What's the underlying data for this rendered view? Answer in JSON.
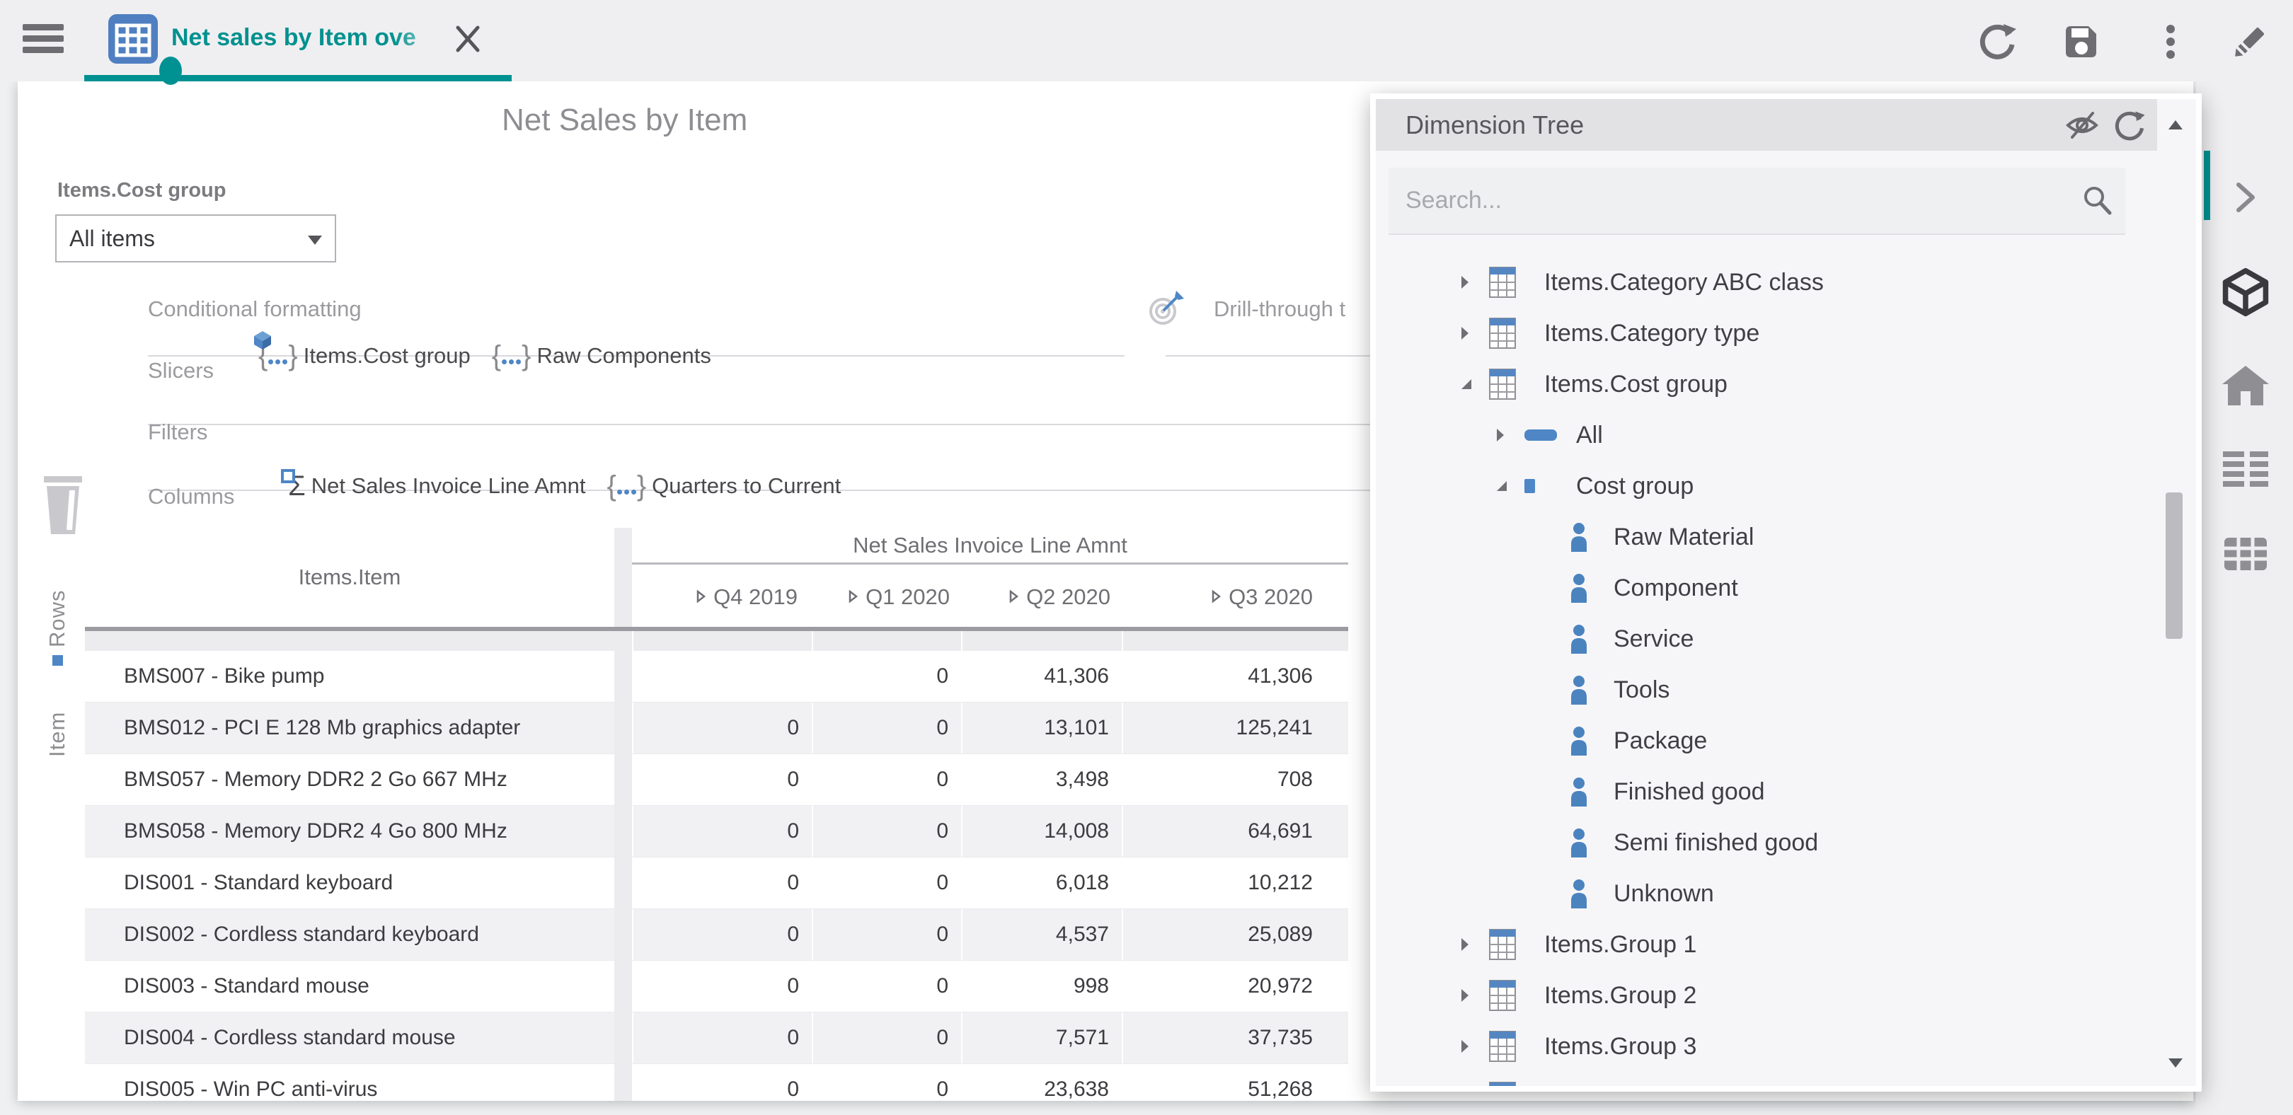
{
  "topbar": {
    "tab_title": "Net sales by Item ove"
  },
  "report": {
    "title": "Net Sales by Item",
    "slicer": {
      "label": "Items.Cost group",
      "value": "All items"
    },
    "sections": {
      "conditional_formatting": "Conditional formatting",
      "drill_through": "Drill-through t",
      "slicers": "Slicers",
      "filters": "Filters",
      "columns": "Columns",
      "rows": "Rows",
      "row_field": "Item",
      "slicer_chips": [
        "Items.Cost group",
        "Raw Components"
      ],
      "column_chips": [
        "Net Sales Invoice Line Amnt",
        "Quarters to Current"
      ]
    }
  },
  "pivot": {
    "row_dimension": "Items.Item",
    "measure": "Net Sales Invoice Line Amnt",
    "columns": [
      "Q4 2019",
      "Q1 2020",
      "Q2 2020",
      "Q3 2020"
    ],
    "rows": [
      {
        "item": "BMS007 - Bike pump",
        "values": [
          "",
          "0",
          "41,306",
          "41,306"
        ]
      },
      {
        "item": "BMS012 - PCI E 128 Mb graphics adapter",
        "values": [
          "0",
          "0",
          "13,101",
          "125,241"
        ]
      },
      {
        "item": "BMS057 - Memory DDR2 2 Go 667 MHz",
        "values": [
          "0",
          "0",
          "3,498",
          "708"
        ]
      },
      {
        "item": "BMS058 - Memory DDR2 4 Go 800 MHz",
        "values": [
          "0",
          "0",
          "14,008",
          "64,691"
        ]
      },
      {
        "item": "DIS001 - Standard keyboard",
        "values": [
          "0",
          "0",
          "6,018",
          "10,212"
        ]
      },
      {
        "item": "DIS002 - Cordless standard keyboard",
        "values": [
          "0",
          "0",
          "4,537",
          "25,089"
        ]
      },
      {
        "item": "DIS003 - Standard mouse",
        "values": [
          "0",
          "0",
          "998",
          "20,972"
        ]
      },
      {
        "item": "DIS004 - Cordless standard mouse",
        "values": [
          "0",
          "0",
          "7,571",
          "37,735"
        ]
      },
      {
        "item": "DIS005 - Win PC anti-virus",
        "values": [
          "0",
          "0",
          "23,638",
          "51,268"
        ]
      }
    ]
  },
  "dimension_tree": {
    "title": "Dimension Tree",
    "search_placeholder": "Search...",
    "nodes": [
      {
        "label": "Items.Category ABC class",
        "icon": "table",
        "expander": "collapsed",
        "level": 0
      },
      {
        "label": "Items.Category type",
        "icon": "table",
        "expander": "collapsed",
        "level": 0
      },
      {
        "label": "Items.Cost group",
        "icon": "table",
        "expander": "expanded",
        "level": 0
      },
      {
        "label": "All",
        "icon": "all-member",
        "expander": "collapsed",
        "level": 1
      },
      {
        "label": "Cost group",
        "icon": "level",
        "expander": "expanded",
        "level": 1
      },
      {
        "label": "Raw Material",
        "icon": "member",
        "expander": "none",
        "level": 2
      },
      {
        "label": "Component",
        "icon": "member",
        "expander": "none",
        "level": 2
      },
      {
        "label": "Service",
        "icon": "member",
        "expander": "none",
        "level": 2
      },
      {
        "label": "Tools",
        "icon": "member",
        "expander": "none",
        "level": 2
      },
      {
        "label": "Package",
        "icon": "member",
        "expander": "none",
        "level": 2
      },
      {
        "label": "Finished good",
        "icon": "member",
        "expander": "none",
        "level": 2
      },
      {
        "label": "Semi finished good",
        "icon": "member",
        "expander": "none",
        "level": 2
      },
      {
        "label": "Unknown",
        "icon": "member",
        "expander": "none",
        "level": 2
      },
      {
        "label": "Items.Group 1",
        "icon": "table",
        "expander": "collapsed",
        "level": 0
      },
      {
        "label": "Items.Group 2",
        "icon": "table",
        "expander": "collapsed",
        "level": 0
      },
      {
        "label": "Items.Group 3",
        "icon": "table",
        "expander": "collapsed",
        "level": 0
      }
    ]
  },
  "colors": {
    "accent_teal": "#009192",
    "icon_blue": "#4e86c6",
    "member_blue": "#4b83bf"
  }
}
